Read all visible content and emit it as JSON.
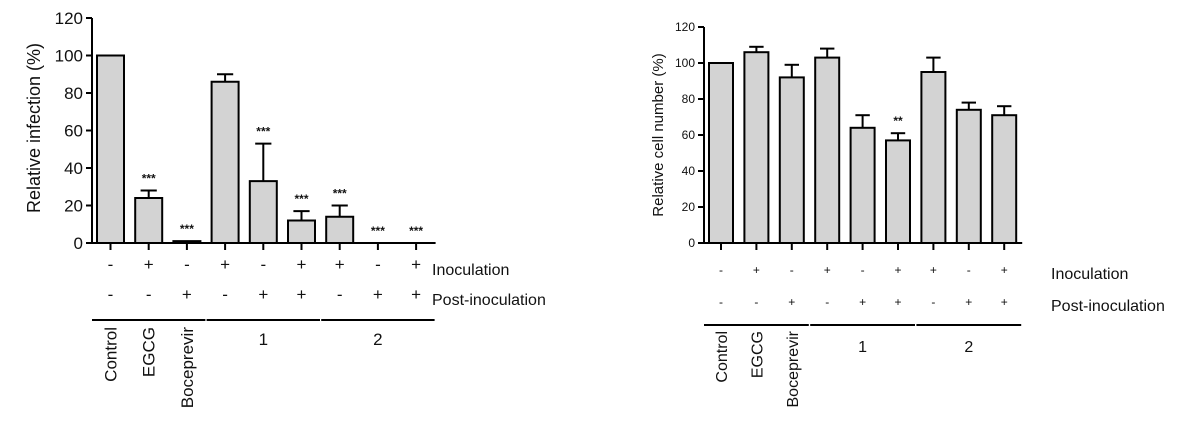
{
  "colors": {
    "bar_fill": "#d3d3d3",
    "stroke": "#000000",
    "text": "#111111"
  },
  "row_labels": {
    "inoculation": "Inoculation",
    "post_inoculation": "Post-inoculation"
  },
  "chart_data": [
    {
      "type": "bar",
      "ylabel": "Relative infection (%)",
      "ylim": [
        0,
        120
      ],
      "yticks": [
        "0",
        "20",
        "40",
        "60",
        "80",
        "100",
        "120"
      ],
      "grid": false,
      "legend": "none",
      "bars": [
        {
          "value": 100,
          "error": 0,
          "sig": "",
          "inoculation": "-",
          "post": "-"
        },
        {
          "value": 24,
          "error": 4,
          "sig": "***",
          "inoculation": "+",
          "post": "-"
        },
        {
          "value": 1,
          "error": 0,
          "sig": "***",
          "inoculation": "-",
          "post": "+"
        },
        {
          "value": 86,
          "error": 4,
          "sig": "",
          "inoculation": "+",
          "post": "-"
        },
        {
          "value": 33,
          "error": 20,
          "sig": "***",
          "inoculation": "-",
          "post": "+"
        },
        {
          "value": 12,
          "error": 5,
          "sig": "***",
          "inoculation": "+",
          "post": "+"
        },
        {
          "value": 14,
          "error": 6,
          "sig": "***",
          "inoculation": "+",
          "post": "-"
        },
        {
          "value": 0,
          "error": 0,
          "sig": "***",
          "inoculation": "-",
          "post": "+"
        },
        {
          "value": 0,
          "error": 0,
          "sig": "***",
          "inoculation": "+",
          "post": "+"
        }
      ],
      "groups": [
        {
          "labels": [
            "Control",
            "EGCG",
            "Boceprevir"
          ],
          "vertical": true
        },
        {
          "labels": [
            "1"
          ],
          "vertical": false
        },
        {
          "labels": [
            "2"
          ],
          "vertical": false
        }
      ]
    },
    {
      "type": "bar",
      "ylabel": "Relative cell number (%)",
      "ylim": [
        0,
        120
      ],
      "yticks": [
        "0",
        "20",
        "40",
        "60",
        "80",
        "100",
        "120"
      ],
      "grid": false,
      "legend": "none",
      "bars": [
        {
          "value": 100,
          "error": 0,
          "sig": "",
          "inoculation": "-",
          "post": "-"
        },
        {
          "value": 106,
          "error": 3,
          "sig": "",
          "inoculation": "+",
          "post": "-"
        },
        {
          "value": 92,
          "error": 7,
          "sig": "",
          "inoculation": "-",
          "post": "+"
        },
        {
          "value": 103,
          "error": 5,
          "sig": "",
          "inoculation": "+",
          "post": "-"
        },
        {
          "value": 64,
          "error": 7,
          "sig": "",
          "inoculation": "-",
          "post": "+"
        },
        {
          "value": 57,
          "error": 4,
          "sig": "**",
          "inoculation": "+",
          "post": "+"
        },
        {
          "value": 95,
          "error": 8,
          "sig": "",
          "inoculation": "+",
          "post": "-"
        },
        {
          "value": 74,
          "error": 4,
          "sig": "",
          "inoculation": "-",
          "post": "+"
        },
        {
          "value": 71,
          "error": 5,
          "sig": "",
          "inoculation": "+",
          "post": "+"
        }
      ],
      "groups": [
        {
          "labels": [
            "Control",
            "EGCG",
            "Boceprevir"
          ],
          "vertical": true
        },
        {
          "labels": [
            "1"
          ],
          "vertical": false
        },
        {
          "labels": [
            "2"
          ],
          "vertical": false
        }
      ]
    }
  ]
}
